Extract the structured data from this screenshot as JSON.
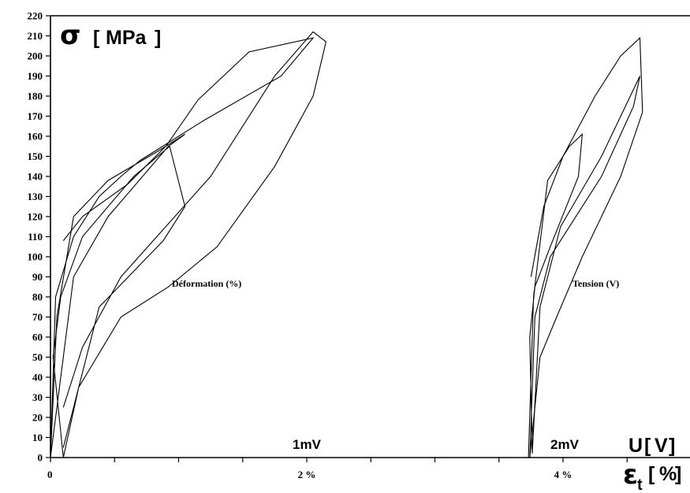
{
  "chart_data": {
    "type": "line",
    "ylim": [
      0,
      220
    ],
    "xlim": [
      0,
      5
    ],
    "y_ticks": [
      "0",
      "10",
      "20",
      "30",
      "40",
      "50",
      "60",
      "70",
      "80",
      "90",
      "100",
      "110",
      "120",
      "130",
      "140",
      "150",
      "160",
      "170",
      "180",
      "190",
      "200",
      "210",
      "220"
    ],
    "x_ticks": [
      {
        "value": 0,
        "label": "0"
      },
      {
        "value": 2,
        "label": "2 %"
      },
      {
        "value": 4,
        "label": "4 %"
      }
    ],
    "ylabel": {
      "symbol": "σ",
      "unit": "MPa"
    },
    "xlabel": {
      "symbol": "ε",
      "subscript": "t",
      "unit": "%"
    },
    "x2label": {
      "symbol": "U",
      "unit": "V"
    },
    "annotations": {
      "strain": "Déformation (%)",
      "voltage": "Tension (V)",
      "scale1": "1mV",
      "scale2": "2mV"
    },
    "series": [
      {
        "group": "strain",
        "x": [
          0.0,
          0.05,
          0.18,
          0.45,
          0.85,
          1.05,
          0.92,
          0.45,
          0.18,
          0.0,
          0.04,
          0.18,
          0.38,
          0.55,
          0.7,
          1.2,
          1.8,
          2.05,
          1.55,
          1.15,
          0.9,
          0.6,
          0.25,
          0.1
        ],
        "y": [
          0,
          70,
          120,
          138,
          153,
          161,
          155,
          120,
          90,
          0,
          80,
          110,
          130,
          140,
          148,
          168,
          190,
          209,
          202,
          178,
          155,
          136,
          120,
          108
        ]
      },
      {
        "group": "strain",
        "x": [
          0.1,
          0.38,
          0.88,
          1.05,
          0.93,
          0.65,
          0.25,
          0.08,
          0.02,
          0.1,
          0.22,
          0.55,
          0.92,
          1.3,
          1.75,
          2.05,
          2.15,
          2.05,
          1.75,
          1.25,
          0.55,
          0.25,
          0.1
        ],
        "y": [
          5,
          75,
          108,
          125,
          155,
          140,
          110,
          80,
          50,
          0,
          35,
          70,
          85,
          105,
          145,
          180,
          207,
          212,
          190,
          140,
          90,
          55,
          25
        ]
      },
      {
        "group": "voltage",
        "x": [
          3.73,
          3.77,
          3.88,
          4.05,
          4.15,
          4.12,
          3.9,
          3.78,
          3.74,
          3.76,
          3.82,
          3.98,
          4.1,
          4.3,
          4.6,
          4.55,
          4.3,
          4.05,
          3.9,
          3.78,
          3.74
        ],
        "y": [
          0,
          80,
          138,
          155,
          161,
          140,
          105,
          85,
          60,
          2,
          75,
          115,
          128,
          150,
          190,
          175,
          140,
          115,
          100,
          70,
          0
        ]
      },
      {
        "group": "voltage",
        "x": [
          3.74,
          3.82,
          3.95,
          4.15,
          4.45,
          4.62,
          4.6,
          4.45,
          4.25,
          4.0,
          3.85,
          3.75
        ],
        "y": [
          0,
          50,
          70,
          100,
          140,
          172,
          209,
          200,
          180,
          150,
          125,
          90
        ]
      }
    ]
  }
}
